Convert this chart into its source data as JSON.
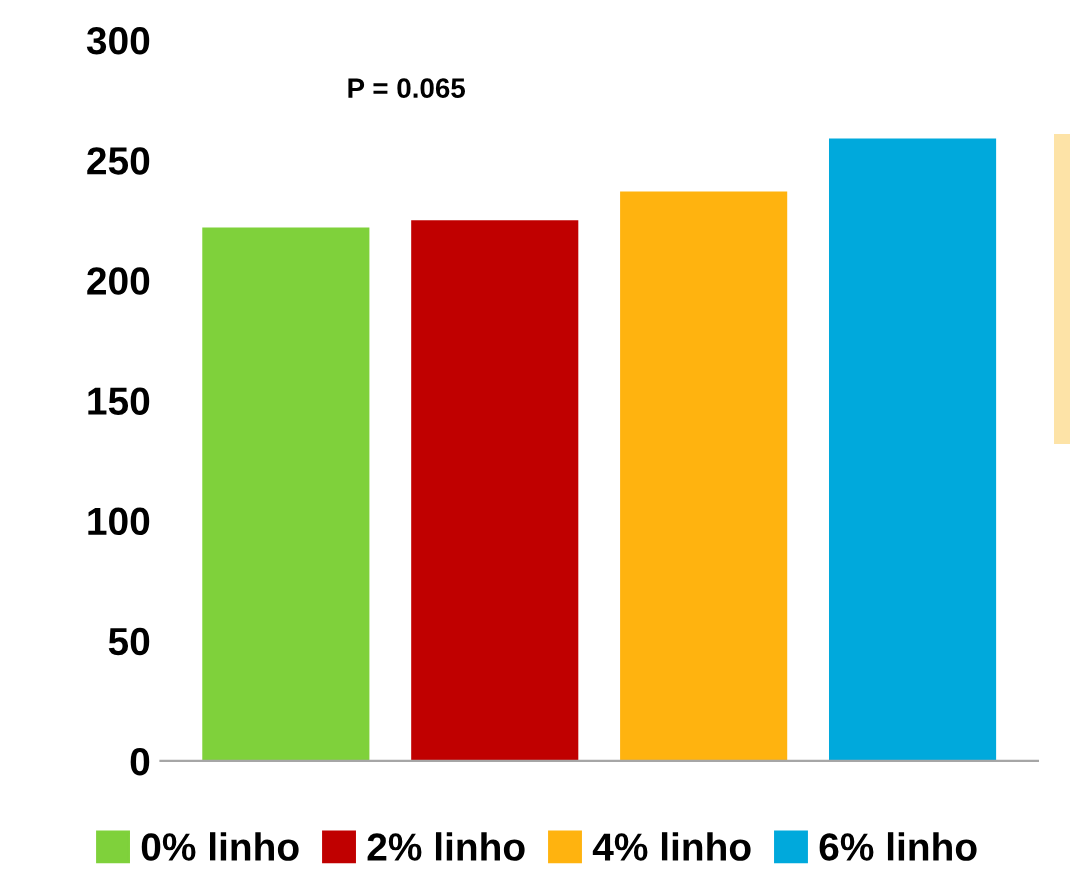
{
  "chart_data": {
    "type": "bar",
    "categories": [
      null,
      null,
      null,
      null
    ],
    "series": [
      {
        "name": "0% linho",
        "color": "#7fd13b",
        "values": [
          222,
          null,
          null,
          null
        ]
      },
      {
        "name": "2% linho",
        "color": "#c00000",
        "values": [
          null,
          225,
          null,
          null
        ]
      },
      {
        "name": "4% linho",
        "color": "#ffb30f",
        "values": [
          null,
          null,
          237,
          null
        ]
      },
      {
        "name": "6% linho",
        "color": "#00a9dc",
        "values": [
          null,
          null,
          null,
          259
        ]
      }
    ],
    "ylim": [
      0,
      300
    ],
    "yticks": [
      0,
      50,
      100,
      150,
      200,
      250,
      300
    ],
    "annotations": [
      "P = 0.065"
    ],
    "legend": "bottom",
    "grid": false
  }
}
